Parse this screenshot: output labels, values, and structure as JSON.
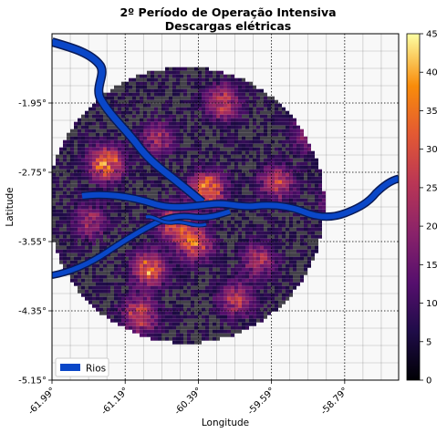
{
  "chart_data": {
    "type": "heatmap",
    "title": "2º Período de Operação Intensiva",
    "subtitle": "Descargas elétricas",
    "xlabel": "Longitude",
    "ylabel": "Latitude",
    "x_ticks": [
      "-61.99°",
      "-61.19°",
      "-60.39°",
      "-59.59°",
      "-58.79°"
    ],
    "x_tick_values": [
      -61.99,
      -61.19,
      -60.39,
      -59.59,
      -58.79
    ],
    "y_ticks": [
      "-1.95°",
      "-2.75°",
      "-3.55°",
      "-4.35°",
      "-5.15°"
    ],
    "y_tick_values": [
      -1.95,
      -2.75,
      -3.55,
      -4.35,
      -5.15
    ],
    "xlim": [
      -61.99,
      -58.2
    ],
    "ylim": [
      -5.15,
      -1.15
    ],
    "grid": true,
    "legend": {
      "placement": "lower-left",
      "entries": [
        {
          "label": "Rios",
          "color": "#0a47c8"
        }
      ]
    },
    "colorbar": {
      "min": 0,
      "max": 45,
      "ticks": [
        0,
        5,
        10,
        15,
        20,
        25,
        30,
        35,
        40,
        45
      ],
      "colormap": "inferno"
    },
    "domain_circle": {
      "center_lon": -60.52,
      "center_lat": -3.13,
      "radius_deg": 1.51
    },
    "hotspots": [
      {
        "lon": -61.42,
        "lat": -2.62,
        "value": 38
      },
      {
        "lon": -60.32,
        "lat": -2.93,
        "value": 40
      },
      {
        "lon": -58.85,
        "lat": -3.05,
        "value": 36
      },
      {
        "lon": -60.68,
        "lat": -3.32,
        "value": 30
      },
      {
        "lon": -60.45,
        "lat": -3.55,
        "value": 32
      },
      {
        "lon": -60.95,
        "lat": -3.85,
        "value": 35
      },
      {
        "lon": -60.15,
        "lat": -1.92,
        "value": 28
      },
      {
        "lon": -61.05,
        "lat": -4.38,
        "value": 30
      },
      {
        "lon": -59.55,
        "lat": -2.85,
        "value": 25
      },
      {
        "lon": -59.75,
        "lat": -3.75,
        "value": 22
      },
      {
        "lon": -60.85,
        "lat": -2.35,
        "value": 20
      },
      {
        "lon": -60.0,
        "lat": -4.2,
        "value": 24
      },
      {
        "lon": -61.6,
        "lat": -3.3,
        "value": 20
      },
      {
        "lon": -59.2,
        "lat": -2.3,
        "value": 18
      }
    ]
  }
}
